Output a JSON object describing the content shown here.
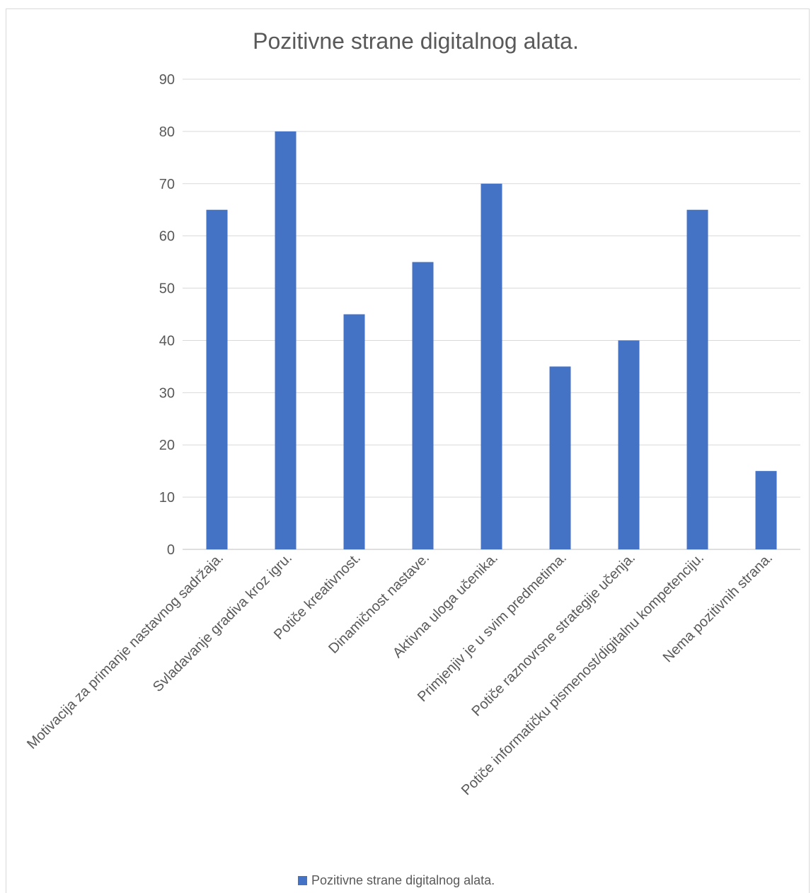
{
  "chart_data": {
    "type": "bar",
    "title": "Pozitivne strane digitalnog alata.",
    "categories": [
      "Motivacija za primanje nastavnog sadržaja.",
      "Svladavanje gradiva kroz igru.",
      "Potiče kreativnost.",
      "Dinamičnost nastave.",
      "Aktivna uloga učenika.",
      "Primjenjiv je u svim predmetima.",
      "Potiče raznovrsne strategije učenja.",
      "Potiče informatičku pismenost/digitalnu kompetenciju.",
      "Nema pozitivnih strana."
    ],
    "series": [
      {
        "name": "Pozitivne strane digitalnog alata.",
        "values": [
          65,
          80,
          45,
          55,
          70,
          35,
          40,
          65,
          15
        ]
      }
    ],
    "ylim": [
      0,
      90
    ],
    "yticks": [
      "0",
      "10",
      "20",
      "30",
      "40",
      "50",
      "60",
      "70",
      "80",
      "90"
    ],
    "grid": true,
    "legend_position": "bottom",
    "bar_color": "#4472c4"
  }
}
